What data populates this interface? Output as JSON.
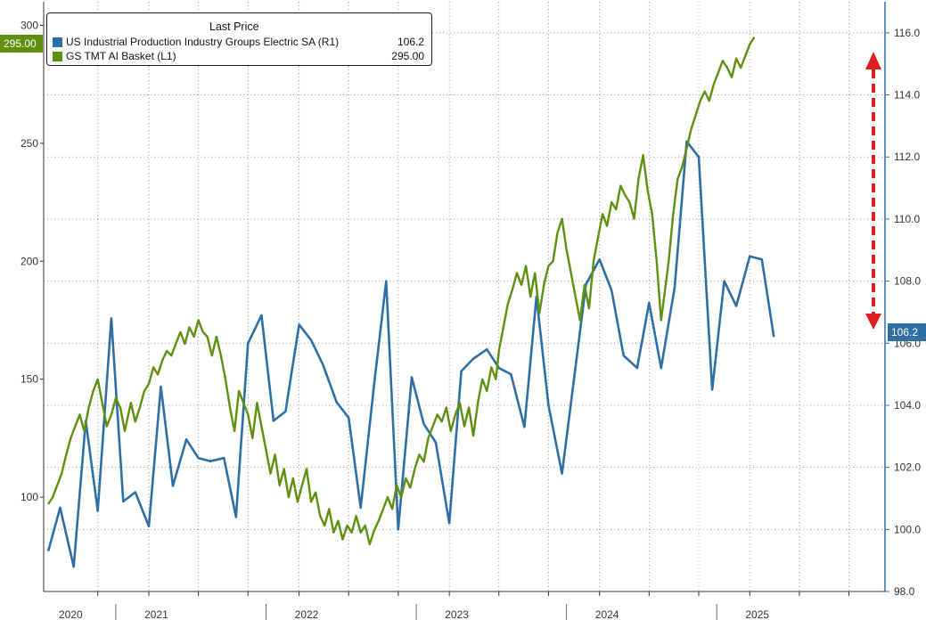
{
  "colors": {
    "series_electric": "#2e6ea6",
    "series_ai": "#5f8f0e",
    "arrow": "#dd1f1f",
    "grid": "#9a9a9a",
    "axis": "#333333"
  },
  "legend": {
    "title": "Last Price",
    "entries": [
      {
        "name": "US Industrial Production Industry Groups Electric SA  (R1)",
        "value": "106.2"
      },
      {
        "name": "GS TMT AI Basket  (L1)",
        "value": "295.00"
      }
    ]
  },
  "badges": {
    "left": "295.00",
    "right": "106.2"
  },
  "chart_data": {
    "type": "line",
    "x_axis": {
      "range": [
        2019.97,
        2025.57
      ],
      "year_labels": [
        {
          "label": "2020",
          "pos": 2020.15
        },
        {
          "label": "2021",
          "pos": 2020.72
        },
        {
          "label": "2022",
          "pos": 2021.72
        },
        {
          "label": "2023",
          "pos": 2022.72
        },
        {
          "label": "2024",
          "pos": 2023.72
        },
        {
          "label": "2025",
          "pos": 2024.72
        }
      ],
      "month_gridlines": [
        2020.33,
        2020.67,
        2021.0,
        2021.33,
        2021.67,
        2022.0,
        2022.33,
        2022.67,
        2023.0,
        2023.33,
        2023.67,
        2024.0,
        2024.33,
        2024.67,
        2025.0,
        2025.33
      ]
    },
    "y_left": {
      "range": [
        60,
        310
      ],
      "ticks": [
        100,
        150,
        200,
        250,
        300
      ],
      "tick_labels": [
        "100",
        "150",
        "200",
        "250",
        "300"
      ]
    },
    "y_right": {
      "range": [
        98.0,
        117.0
      ],
      "ticks": [
        98,
        100,
        102,
        104,
        106,
        108,
        110,
        112,
        114,
        116
      ],
      "tick_labels": [
        "98.0",
        "100.0",
        "102.0",
        "104.0",
        "106.0",
        "108.0",
        "110.0",
        "112.0",
        "114.0",
        "116.0"
      ]
    },
    "series": [
      {
        "name": "US Industrial Production Industry Groups Electric SA  (R1)",
        "axis": "right",
        "points": [
          [
            2020.0,
            99.3
          ],
          [
            2020.08,
            100.7
          ],
          [
            2020.17,
            98.8
          ],
          [
            2020.25,
            103.5
          ],
          [
            2020.33,
            100.6
          ],
          [
            2020.42,
            106.8
          ],
          [
            2020.5,
            100.9
          ],
          [
            2020.58,
            101.2
          ],
          [
            2020.67,
            100.1
          ],
          [
            2020.75,
            104.6
          ],
          [
            2020.83,
            101.4
          ],
          [
            2020.92,
            102.9
          ],
          [
            2021.0,
            102.3
          ],
          [
            2021.08,
            102.2
          ],
          [
            2021.17,
            102.3
          ],
          [
            2021.25,
            100.4
          ],
          [
            2021.33,
            106.0
          ],
          [
            2021.42,
            106.9
          ],
          [
            2021.5,
            103.5
          ],
          [
            2021.58,
            103.8
          ],
          [
            2021.67,
            106.6
          ],
          [
            2021.75,
            106.1
          ],
          [
            2021.83,
            105.3
          ],
          [
            2021.92,
            104.1
          ],
          [
            2022.0,
            103.6
          ],
          [
            2022.08,
            100.7
          ],
          [
            2022.17,
            104.7
          ],
          [
            2022.25,
            108.0
          ],
          [
            2022.33,
            100.0
          ],
          [
            2022.42,
            104.9
          ],
          [
            2022.5,
            103.4
          ],
          [
            2022.58,
            102.8
          ],
          [
            2022.67,
            100.2
          ],
          [
            2022.75,
            105.1
          ],
          [
            2022.83,
            105.5
          ],
          [
            2022.92,
            105.8
          ],
          [
            2023.0,
            105.2
          ],
          [
            2023.08,
            105.0
          ],
          [
            2023.17,
            103.3
          ],
          [
            2023.25,
            107.5
          ],
          [
            2023.33,
            104.0
          ],
          [
            2023.42,
            101.8
          ],
          [
            2023.58,
            107.9
          ],
          [
            2023.67,
            108.7
          ],
          [
            2023.75,
            107.7
          ],
          [
            2023.83,
            105.6
          ],
          [
            2023.92,
            105.2
          ],
          [
            2024.0,
            107.3
          ],
          [
            2024.08,
            105.2
          ],
          [
            2024.17,
            107.8
          ],
          [
            2024.25,
            112.5
          ],
          [
            2024.33,
            112.0
          ],
          [
            2024.42,
            104.5
          ],
          [
            2024.5,
            108.0
          ],
          [
            2024.58,
            107.2
          ],
          [
            2024.67,
            108.8
          ],
          [
            2024.75,
            108.7
          ],
          [
            2024.83,
            106.2
          ]
        ]
      },
      {
        "name": "GS TMT AI Basket  (L1)",
        "axis": "left",
        "points": [
          [
            2020.0,
            97
          ],
          [
            2020.03,
            100
          ],
          [
            2020.06,
            105
          ],
          [
            2020.09,
            110
          ],
          [
            2020.12,
            118
          ],
          [
            2020.15,
            125
          ],
          [
            2020.18,
            130
          ],
          [
            2020.21,
            135
          ],
          [
            2020.24,
            128
          ],
          [
            2020.27,
            138
          ],
          [
            2020.3,
            145
          ],
          [
            2020.33,
            150
          ],
          [
            2020.36,
            140
          ],
          [
            2020.39,
            130
          ],
          [
            2020.42,
            135
          ],
          [
            2020.45,
            142
          ],
          [
            2020.48,
            138
          ],
          [
            2020.51,
            128
          ],
          [
            2020.55,
            140
          ],
          [
            2020.58,
            132
          ],
          [
            2020.61,
            138
          ],
          [
            2020.64,
            145
          ],
          [
            2020.67,
            148
          ],
          [
            2020.7,
            155
          ],
          [
            2020.73,
            152
          ],
          [
            2020.76,
            158
          ],
          [
            2020.79,
            162
          ],
          [
            2020.82,
            160
          ],
          [
            2020.85,
            165
          ],
          [
            2020.88,
            170
          ],
          [
            2020.91,
            165
          ],
          [
            2020.94,
            172
          ],
          [
            2020.97,
            168
          ],
          [
            2021.0,
            175
          ],
          [
            2021.03,
            170
          ],
          [
            2021.06,
            168
          ],
          [
            2021.09,
            160
          ],
          [
            2021.12,
            168
          ],
          [
            2021.15,
            160
          ],
          [
            2021.18,
            150
          ],
          [
            2021.21,
            138
          ],
          [
            2021.24,
            128
          ],
          [
            2021.27,
            145
          ],
          [
            2021.3,
            140
          ],
          [
            2021.33,
            135
          ],
          [
            2021.36,
            125
          ],
          [
            2021.39,
            140
          ],
          [
            2021.42,
            130
          ],
          [
            2021.45,
            120
          ],
          [
            2021.48,
            110
          ],
          [
            2021.51,
            118
          ],
          [
            2021.54,
            105
          ],
          [
            2021.57,
            112
          ],
          [
            2021.6,
            100
          ],
          [
            2021.63,
            108
          ],
          [
            2021.66,
            98
          ],
          [
            2021.69,
            105
          ],
          [
            2021.72,
            112
          ],
          [
            2021.75,
            98
          ],
          [
            2021.78,
            102
          ],
          [
            2021.81,
            92
          ],
          [
            2021.84,
            88
          ],
          [
            2021.87,
            95
          ],
          [
            2021.9,
            85
          ],
          [
            2021.93,
            90
          ],
          [
            2021.96,
            82
          ],
          [
            2021.99,
            88
          ],
          [
            2022.02,
            85
          ],
          [
            2022.05,
            92
          ],
          [
            2022.08,
            85
          ],
          [
            2022.11,
            88
          ],
          [
            2022.14,
            80
          ],
          [
            2022.17,
            86
          ],
          [
            2022.2,
            90
          ],
          [
            2022.23,
            95
          ],
          [
            2022.26,
            100
          ],
          [
            2022.29,
            95
          ],
          [
            2022.32,
            105
          ],
          [
            2022.35,
            100
          ],
          [
            2022.38,
            108
          ],
          [
            2022.41,
            104
          ],
          [
            2022.44,
            112
          ],
          [
            2022.47,
            118
          ],
          [
            2022.5,
            115
          ],
          [
            2022.53,
            125
          ],
          [
            2022.56,
            130
          ],
          [
            2022.59,
            135
          ],
          [
            2022.62,
            132
          ],
          [
            2022.65,
            138
          ],
          [
            2022.68,
            128
          ],
          [
            2022.71,
            135
          ],
          [
            2022.74,
            140
          ],
          [
            2022.77,
            130
          ],
          [
            2022.8,
            138
          ],
          [
            2022.83,
            126
          ],
          [
            2022.86,
            140
          ],
          [
            2022.89,
            150
          ],
          [
            2022.92,
            145
          ],
          [
            2022.95,
            155
          ],
          [
            2022.98,
            150
          ],
          [
            2023.0,
            162
          ],
          [
            2023.03,
            172
          ],
          [
            2023.06,
            182
          ],
          [
            2023.09,
            188
          ],
          [
            2023.12,
            195
          ],
          [
            2023.15,
            190
          ],
          [
            2023.18,
            198
          ],
          [
            2023.21,
            185
          ],
          [
            2023.24,
            195
          ],
          [
            2023.27,
            178
          ],
          [
            2023.3,
            190
          ],
          [
            2023.33,
            198
          ],
          [
            2023.36,
            200
          ],
          [
            2023.39,
            212
          ],
          [
            2023.42,
            218
          ],
          [
            2023.45,
            205
          ],
          [
            2023.48,
            195
          ],
          [
            2023.51,
            185
          ],
          [
            2023.54,
            175
          ],
          [
            2023.57,
            190
          ],
          [
            2023.6,
            180
          ],
          [
            2023.63,
            200
          ],
          [
            2023.66,
            210
          ],
          [
            2023.69,
            220
          ],
          [
            2023.72,
            215
          ],
          [
            2023.75,
            225
          ],
          [
            2023.78,
            222
          ],
          [
            2023.81,
            232
          ],
          [
            2023.84,
            228
          ],
          [
            2023.87,
            225
          ],
          [
            2023.9,
            218
          ],
          [
            2023.93,
            235
          ],
          [
            2023.96,
            245
          ],
          [
            2023.99,
            230
          ],
          [
            2024.02,
            220
          ],
          [
            2024.05,
            200
          ],
          [
            2024.08,
            175
          ],
          [
            2024.1,
            185
          ],
          [
            2024.13,
            200
          ],
          [
            2024.16,
            220
          ],
          [
            2024.19,
            235
          ],
          [
            2024.22,
            240
          ],
          [
            2024.25,
            248
          ],
          [
            2024.28,
            256
          ],
          [
            2024.31,
            262
          ],
          [
            2024.34,
            268
          ],
          [
            2024.37,
            272
          ],
          [
            2024.4,
            268
          ],
          [
            2024.43,
            275
          ],
          [
            2024.46,
            280
          ],
          [
            2024.49,
            285
          ],
          [
            2024.52,
            282
          ],
          [
            2024.55,
            278
          ],
          [
            2024.58,
            286
          ],
          [
            2024.61,
            282
          ],
          [
            2024.64,
            287
          ],
          [
            2024.67,
            292
          ],
          [
            2024.7,
            295
          ]
        ]
      }
    ]
  }
}
